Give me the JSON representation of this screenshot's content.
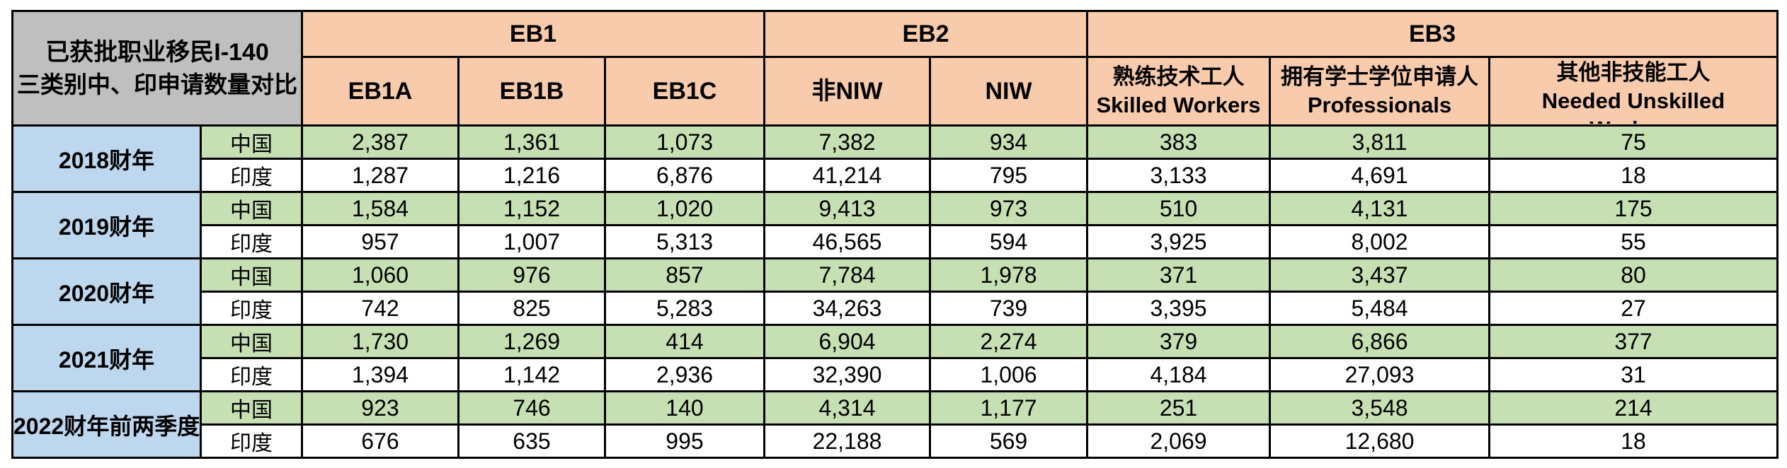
{
  "chart_data": {
    "type": "table",
    "title": "已获批职业移民I-140 三类别中、印申请数量对比",
    "corner_lines": [
      "已获批职业移民I-140",
      "三类别中、印申请数量对比"
    ],
    "column_groups": [
      {
        "label": "EB1",
        "span": 3
      },
      {
        "label": "EB2",
        "span": 2
      },
      {
        "label": "EB3",
        "span": 3
      }
    ],
    "columns": [
      [
        "EB1A"
      ],
      [
        "EB1B"
      ],
      [
        "EB1C"
      ],
      [
        "非NIW"
      ],
      [
        "NIW"
      ],
      [
        "熟练技术工人",
        "Skilled Workers"
      ],
      [
        "拥有学士学位申请人",
        "Professionals"
      ],
      [
        "其他非技能工人",
        "Needed Unskilled",
        "Workers"
      ]
    ],
    "country_labels": {
      "china": "中国",
      "india": "印度"
    },
    "rows": [
      {
        "year": "2018财年",
        "china": [
          "2,387",
          "1,361",
          "1,073",
          "7,382",
          "934",
          "383",
          "3,811",
          "75"
        ],
        "india": [
          "1,287",
          "1,216",
          "6,876",
          "41,214",
          "795",
          "3,133",
          "4,691",
          "18"
        ]
      },
      {
        "year": "2019财年",
        "china": [
          "1,584",
          "1,152",
          "1,020",
          "9,413",
          "973",
          "510",
          "4,131",
          "175"
        ],
        "india": [
          "957",
          "1,007",
          "5,313",
          "46,565",
          "594",
          "3,925",
          "8,002",
          "55"
        ]
      },
      {
        "year": "2020财年",
        "china": [
          "1,060",
          "976",
          "857",
          "7,784",
          "1,978",
          "371",
          "3,437",
          "80"
        ],
        "india": [
          "742",
          "825",
          "5,283",
          "34,263",
          "739",
          "3,395",
          "5,484",
          "27"
        ]
      },
      {
        "year": "2021财年",
        "china": [
          "1,730",
          "1,269",
          "414",
          "6,904",
          "2,274",
          "379",
          "6,866",
          "377"
        ],
        "india": [
          "1,394",
          "1,142",
          "2,936",
          "32,390",
          "1,006",
          "4,184",
          "27,093",
          "31"
        ]
      },
      {
        "year": "2022财年前两季度",
        "china": [
          "923",
          "746",
          "140",
          "4,314",
          "1,177",
          "251",
          "3,548",
          "214"
        ],
        "india": [
          "676",
          "635",
          "995",
          "22,188",
          "569",
          "2,069",
          "12,680",
          "18"
        ]
      }
    ]
  },
  "colors": {
    "corner_gray": "#BFBFBF",
    "header_orange": "#F8CBAD",
    "year_blue": "#BDD7EE",
    "china_green": "#C6E0B4",
    "india_white": "#FFFFFF",
    "border_black": "#000000",
    "page_bg": "#FFFFFF"
  }
}
